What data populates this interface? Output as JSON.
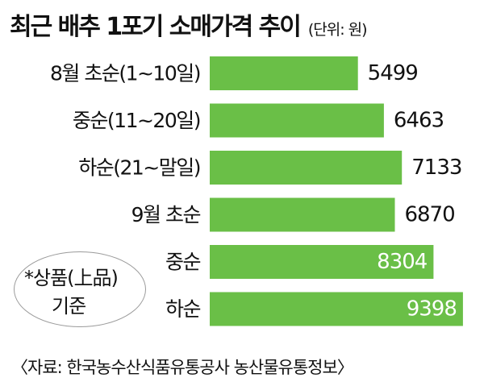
{
  "header": {
    "title": "최근 배추 1포기 소매가격 추이",
    "unit": "(단위: 원)"
  },
  "note": {
    "line1": "*상품(上品)",
    "line2": "기준"
  },
  "source": "〈자료: 한국농수산식품유통공사 농산물유통정보〉",
  "colors": {
    "bar": "#6abf47",
    "text": "#111111",
    "inside_label": "#ffffff"
  },
  "chart_data": {
    "type": "bar",
    "orientation": "horizontal",
    "title": "최근 배추 1포기 소매가격 추이",
    "unit": "(단위: 원)",
    "categories": [
      "8월 초순(1~10일)",
      "중순(11~20일)",
      "하순(21~말일)",
      "9월 초순",
      "중순",
      "하순"
    ],
    "values": [
      5499,
      6463,
      7133,
      6870,
      8304,
      9398
    ],
    "value_labels_inside": [
      false,
      false,
      false,
      false,
      true,
      true
    ],
    "grid": false,
    "legend": "none"
  }
}
